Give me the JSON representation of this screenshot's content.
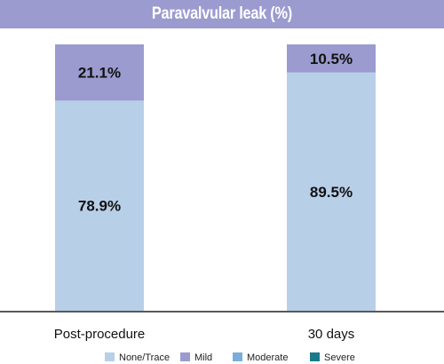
{
  "chart_data": {
    "type": "bar",
    "stacked": true,
    "title": "Paravalvular leak (%)",
    "categories": [
      "Post-procedure",
      "30 days"
    ],
    "series": [
      {
        "name": "None/Trace",
        "color": "#b8cfe8",
        "values": [
          78.9,
          89.5
        ],
        "labels": [
          "78.9%",
          "89.5%"
        ]
      },
      {
        "name": "Mild",
        "color": "#9b9bd0",
        "values": [
          21.1,
          10.5
        ],
        "labels": [
          "21.1%",
          "10.5%"
        ]
      },
      {
        "name": "Moderate",
        "color": "#7aaed8",
        "values": [
          0,
          0
        ],
        "labels": [
          "",
          ""
        ]
      },
      {
        "name": "Severe",
        "color": "#1a7a8c",
        "values": [
          0,
          0
        ],
        "labels": [
          "",
          ""
        ]
      }
    ],
    "ylim": [
      0,
      100
    ],
    "grid": false,
    "legend_position": "bottom"
  }
}
